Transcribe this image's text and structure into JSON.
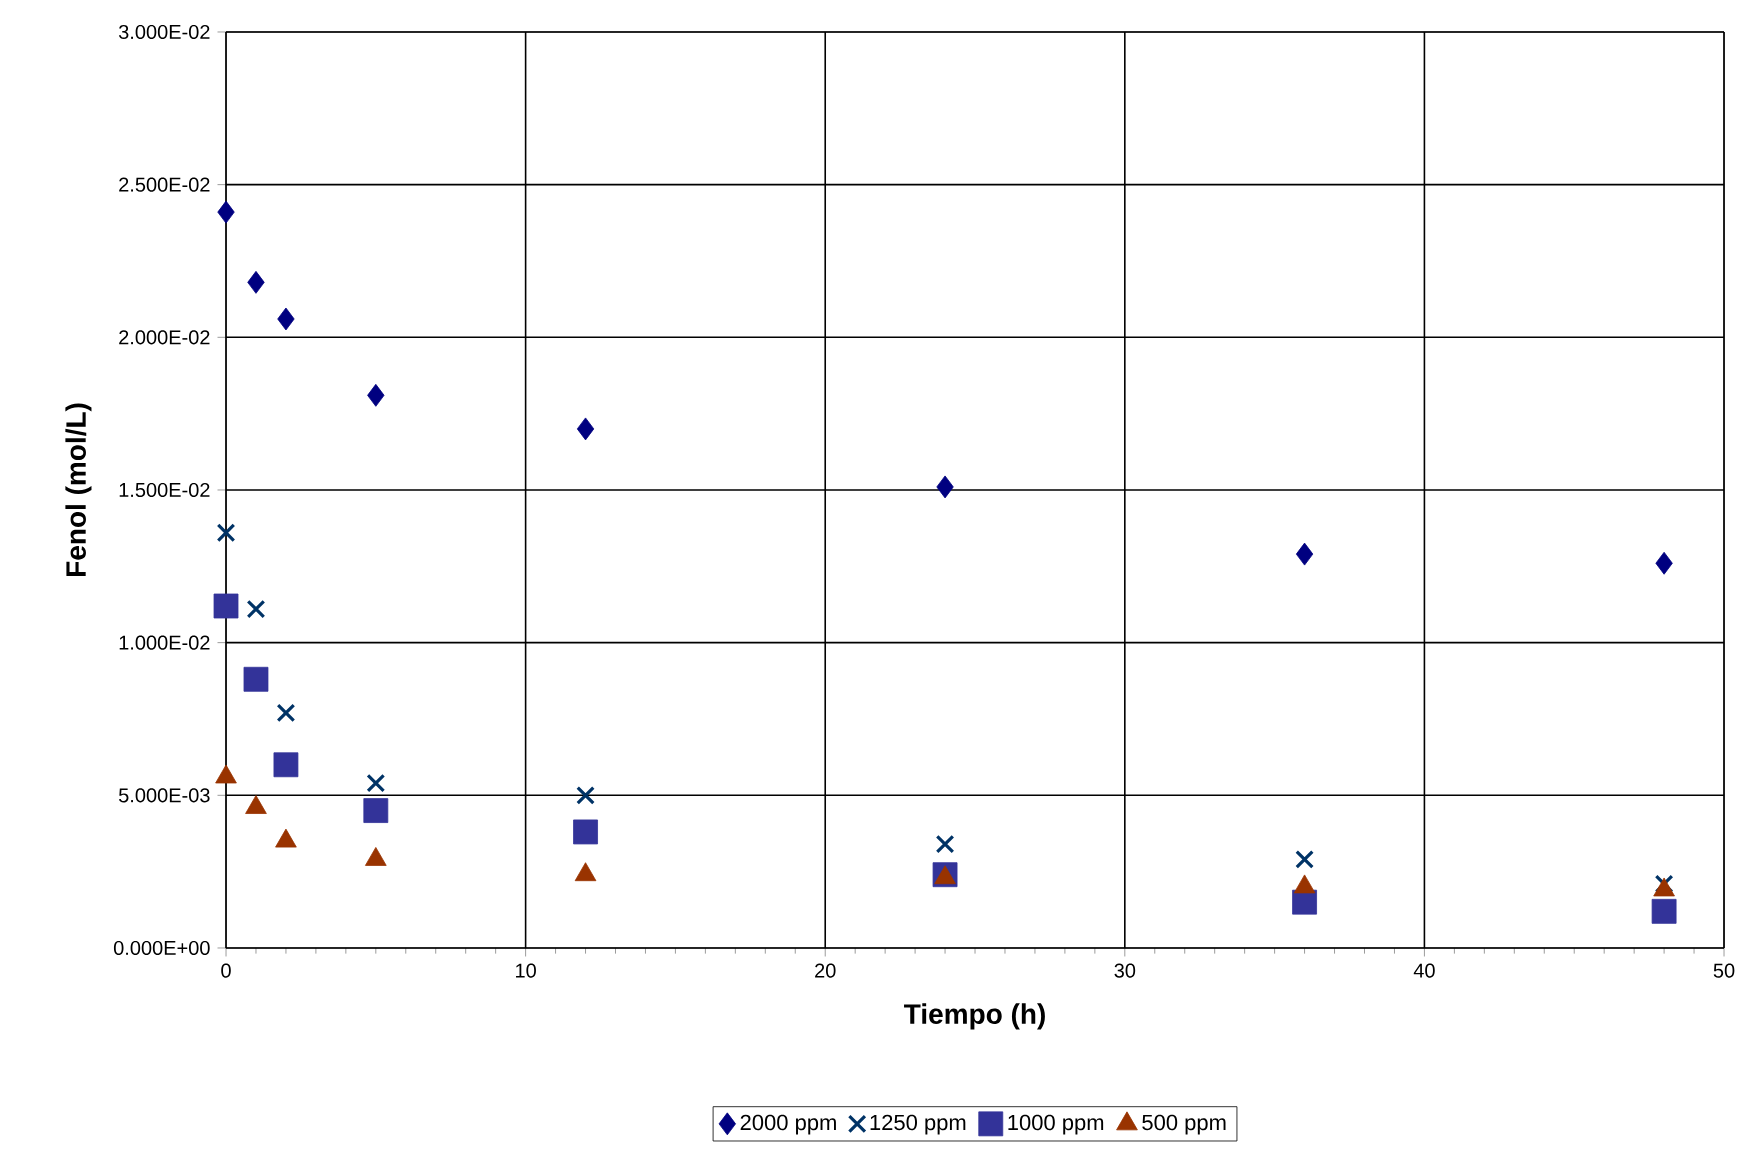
{
  "chart_data": {
    "type": "scatter",
    "xlabel": "Tiempo (h)",
    "ylabel": "Fenol (mol/L)",
    "x": [
      0,
      1,
      2,
      5,
      12,
      24,
      36,
      48
    ],
    "series": [
      {
        "name": "2000 ppm",
        "color": "#000080",
        "marker": "diamond",
        "values": [
          0.0241,
          0.0218,
          0.0206,
          0.0181,
          0.017,
          0.0151,
          0.0129,
          0.0126
        ]
      },
      {
        "name": "1250 ppm",
        "color": "#003366",
        "marker": "cross",
        "values": [
          0.0136,
          0.0111,
          0.0077,
          0.0054,
          0.005,
          0.0034,
          0.0029,
          0.0021
        ]
      },
      {
        "name": "1000 ppm",
        "color": "#333399",
        "marker": "square",
        "values": [
          0.0112,
          0.0088,
          0.006,
          0.0045,
          0.0038,
          0.0024,
          0.0015,
          0.0012
        ]
      },
      {
        "name": "500 ppm",
        "color": "#993300",
        "marker": "triangle",
        "values": [
          0.0056,
          0.0046,
          0.0035,
          0.0029,
          0.0024,
          0.0023,
          0.002,
          0.0019
        ]
      }
    ],
    "xlim": [
      0,
      50
    ],
    "xticks": [
      0,
      10,
      20,
      30,
      40,
      50
    ],
    "ylim": [
      0,
      0.03
    ],
    "yticks": [
      {
        "value": 0,
        "label": "0.000E+00"
      },
      {
        "value": 0.005,
        "label": "5.000E-03"
      },
      {
        "value": 0.01,
        "label": "1.000E-02"
      },
      {
        "value": 0.015,
        "label": "1.500E-02"
      },
      {
        "value": 0.02,
        "label": "2.000E-02"
      },
      {
        "value": 0.025,
        "label": "2.500E-02"
      },
      {
        "value": 0.03,
        "label": "3.000E-02"
      }
    ],
    "grid": true,
    "legend": "bottom"
  }
}
